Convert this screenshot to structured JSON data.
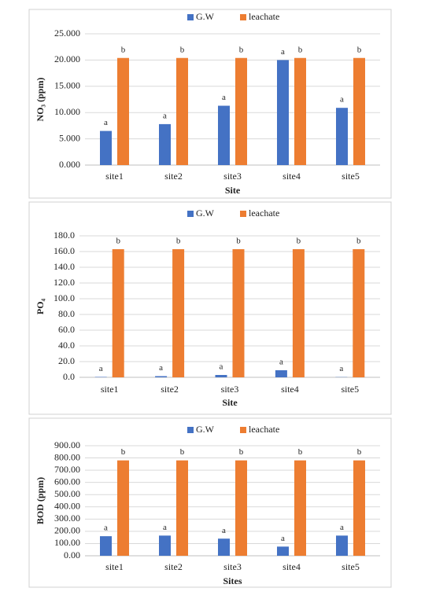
{
  "chart_data": [
    {
      "type": "bar",
      "ylabel": "NO₃ (ppm)",
      "xlabel": "Site",
      "categories": [
        "site1",
        "site2",
        "site3",
        "site4",
        "site5"
      ],
      "series": [
        {
          "name": "G.W",
          "color": "#4472c4",
          "values": [
            6.5,
            7.8,
            11.3,
            20.0,
            10.9
          ],
          "letters": [
            "a",
            "a",
            "a",
            "a",
            "a"
          ]
        },
        {
          "name": "leachate",
          "color": "#ed7d31",
          "values": [
            20.4,
            20.4,
            20.4,
            20.4,
            20.4
          ],
          "letters": [
            "b",
            "b",
            "b",
            "b",
            "b"
          ]
        }
      ],
      "ylim": [
        0,
        25
      ],
      "yticks": [
        {
          "value": 0,
          "label": "0.000"
        },
        {
          "value": 5,
          "label": "5.000"
        },
        {
          "value": 10,
          "label": "10.000"
        },
        {
          "value": 15,
          "label": "15.000"
        },
        {
          "value": 20,
          "label": "20.000"
        },
        {
          "value": 25,
          "label": "25.000"
        }
      ],
      "grid": true,
      "legend": "top"
    },
    {
      "type": "bar",
      "ylabel": "PO₄",
      "xlabel": "Site",
      "categories": [
        "site1",
        "site2",
        "site3",
        "site4",
        "site5"
      ],
      "series": [
        {
          "name": "G.W",
          "color": "#4472c4",
          "values": [
            0.5,
            1.5,
            3,
            9,
            0.3
          ],
          "letters": [
            "a",
            "a",
            "a",
            "a",
            "a"
          ]
        },
        {
          "name": "leachate",
          "color": "#ed7d31",
          "values": [
            163,
            163,
            163,
            163,
            163
          ],
          "letters": [
            "b",
            "b",
            "b",
            "b",
            "b"
          ]
        }
      ],
      "ylim": [
        0,
        180
      ],
      "yticks": [
        {
          "value": 0,
          "label": "0.0"
        },
        {
          "value": 20,
          "label": "20.0"
        },
        {
          "value": 40,
          "label": "40.0"
        },
        {
          "value": 60,
          "label": "60.0"
        },
        {
          "value": 80,
          "label": "80.0"
        },
        {
          "value": 100,
          "label": "100.0"
        },
        {
          "value": 120,
          "label": "120.0"
        },
        {
          "value": 140,
          "label": "140.0"
        },
        {
          "value": 160,
          "label": "160.0"
        },
        {
          "value": 180,
          "label": "180.0"
        }
      ],
      "grid": true,
      "legend": "top"
    },
    {
      "type": "bar",
      "ylabel": "BOD (ppm)",
      "xlabel": "Sites",
      "categories": [
        "site1",
        "site2",
        "site3",
        "site4",
        "site5"
      ],
      "series": [
        {
          "name": "G.W",
          "color": "#4472c4",
          "values": [
            160,
            165,
            140,
            75,
            165
          ],
          "letters": [
            "a",
            "a",
            "a",
            "a",
            "a"
          ]
        },
        {
          "name": "leachate",
          "color": "#ed7d31",
          "values": [
            780,
            780,
            780,
            780,
            780
          ],
          "letters": [
            "b",
            "b",
            "b",
            "b",
            "b"
          ]
        }
      ],
      "ylim": [
        0,
        900
      ],
      "yticks": [
        {
          "value": 0,
          "label": "0.00"
        },
        {
          "value": 100,
          "label": "100.00"
        },
        {
          "value": 200,
          "label": "200.00"
        },
        {
          "value": 300,
          "label": "300.00"
        },
        {
          "value": 400,
          "label": "400.00"
        },
        {
          "value": 500,
          "label": "500.00"
        },
        {
          "value": 600,
          "label": "600.00"
        },
        {
          "value": 700,
          "label": "700.00"
        },
        {
          "value": 800,
          "label": "800.00"
        },
        {
          "value": 900,
          "label": "900.00"
        }
      ],
      "grid": true,
      "legend": "top"
    }
  ]
}
